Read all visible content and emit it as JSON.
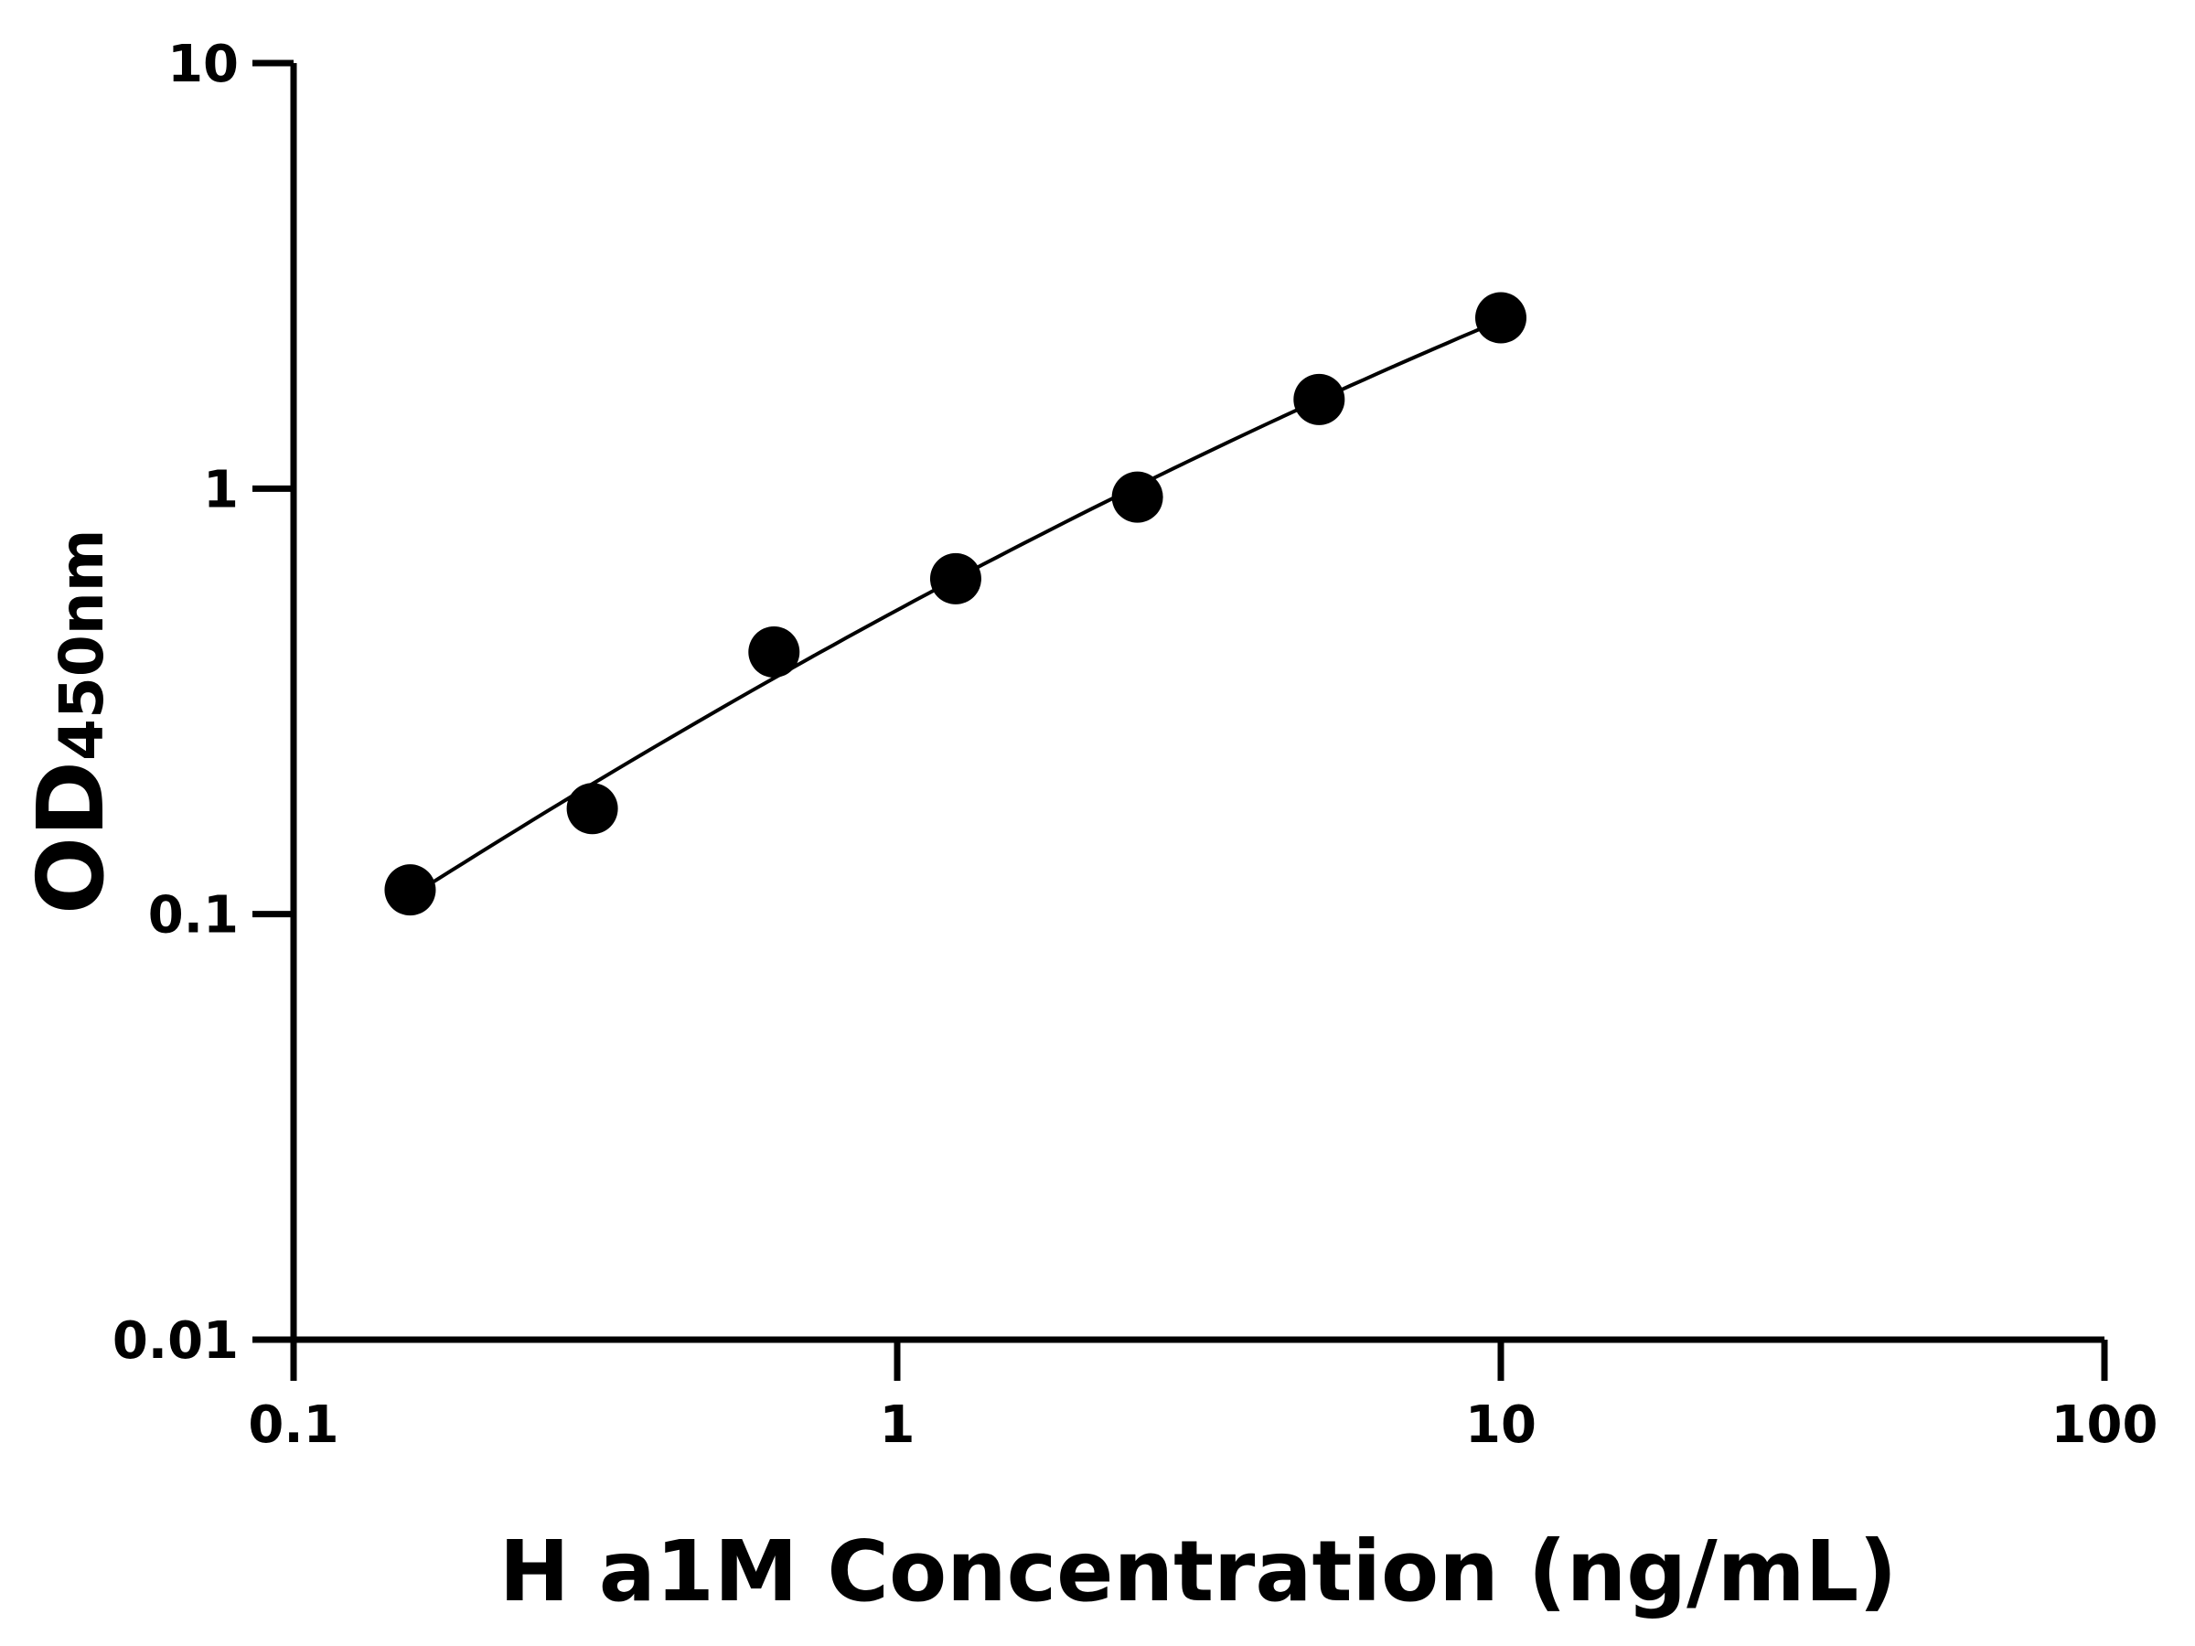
{
  "chart_data": {
    "type": "scatter",
    "title": "",
    "xlabel": "H a1M Concentration (ng/mL)",
    "ylabel_main": "OD",
    "ylabel_sub": "450nm",
    "x_scale": "log",
    "y_scale": "log",
    "xlim": [
      0.1,
      100
    ],
    "ylim": [
      0.01,
      10
    ],
    "x_ticks": [
      "0.1",
      "1",
      "10",
      "100"
    ],
    "y_ticks": [
      "0.01",
      "0.1",
      "1",
      "10"
    ],
    "grid": false,
    "legend": "none",
    "fit_line": true,
    "series": [
      {
        "x": [
          0.156,
          0.3125,
          0.625,
          1.25,
          2.5,
          5,
          10
        ],
        "y": [
          0.114,
          0.177,
          0.413,
          0.614,
          0.955,
          1.62,
          2.52
        ]
      }
    ],
    "colors": {
      "points": "#000000",
      "line": "#000000",
      "axes": "#000000"
    }
  }
}
